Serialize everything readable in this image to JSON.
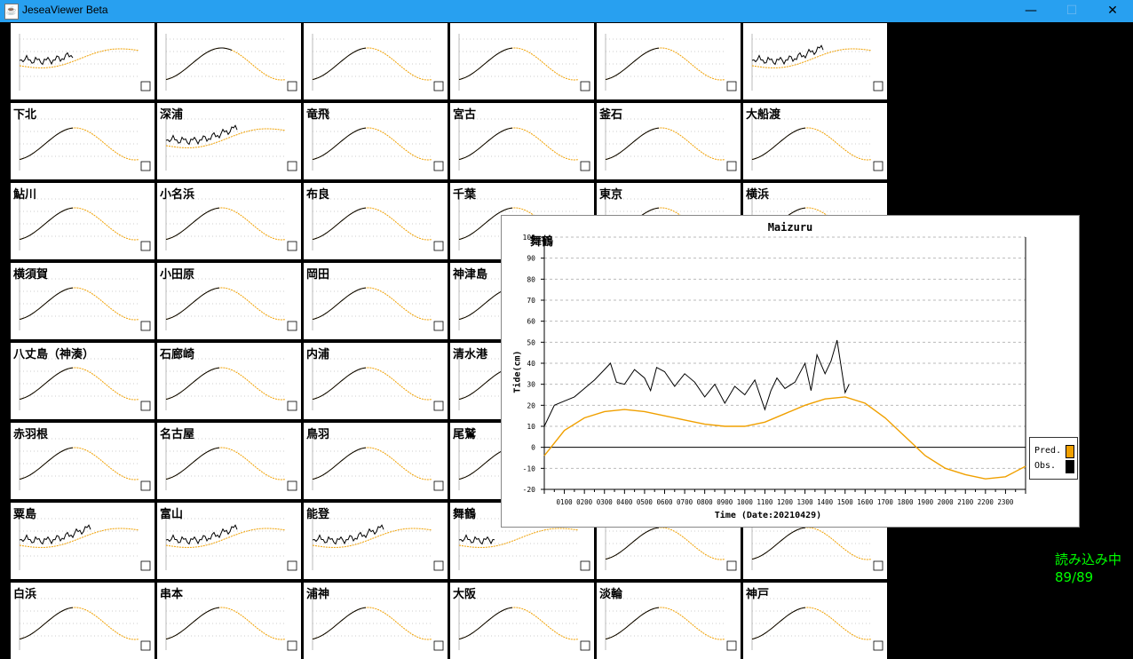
{
  "window": {
    "title": "JeseaViewer Beta",
    "minimize_glyph": "—",
    "maximize_glyph": "☐",
    "close_glyph": "✕"
  },
  "colors": {
    "titlebar": "#28a0f0",
    "predicted": "#f0a000",
    "observed": "#000000",
    "status_text": "#00ff00"
  },
  "tiles": [
    {
      "name": "",
      "style": "noisy",
      "obs": 0.45
    },
    {
      "name": "",
      "style": "wave",
      "obs": 0.55
    },
    {
      "name": "",
      "style": "wave",
      "obs": 0.45
    },
    {
      "name": "",
      "style": "wave",
      "obs": 0.45
    },
    {
      "name": "",
      "style": "wave",
      "obs": 0.45
    },
    {
      "name": "",
      "style": "noisy",
      "obs": 0.6
    },
    {
      "name": "下北",
      "style": "wave",
      "obs": 0.45
    },
    {
      "name": "深浦",
      "style": "noisy",
      "obs": 0.6
    },
    {
      "name": "竜飛",
      "style": "wave",
      "obs": 0.45
    },
    {
      "name": "宮古",
      "style": "wave",
      "obs": 0.45
    },
    {
      "name": "釜石",
      "style": "wave",
      "obs": 0.45
    },
    {
      "name": "大船渡",
      "style": "wave",
      "obs": 0.45
    },
    {
      "name": "鮎川",
      "style": "wave",
      "obs": 0.45
    },
    {
      "name": "小名浜",
      "style": "wave",
      "obs": 0.45
    },
    {
      "name": "布良",
      "style": "wave",
      "obs": 0.45
    },
    {
      "name": "千葉",
      "style": "wave",
      "obs": 0.45
    },
    {
      "name": "東京",
      "style": "wave",
      "obs": 0.45
    },
    {
      "name": "横浜",
      "style": "wave",
      "obs": 0.45
    },
    {
      "name": "横須賀",
      "style": "wave",
      "obs": 0.45
    },
    {
      "name": "小田原",
      "style": "wave",
      "obs": 0.45
    },
    {
      "name": "岡田",
      "style": "wave",
      "obs": 0.45
    },
    {
      "name": "神津島",
      "style": "wave",
      "obs": 0.45
    },
    {
      "name": "",
      "style": "wave",
      "obs": 0.45
    },
    {
      "name": "",
      "style": "wave",
      "obs": 0.45
    },
    {
      "name": "八丈島（神湊）",
      "style": "wave",
      "obs": 0.45
    },
    {
      "name": "石廊崎",
      "style": "wave",
      "obs": 0.45
    },
    {
      "name": "内浦",
      "style": "wave",
      "obs": 0.45
    },
    {
      "name": "清水港",
      "style": "wave",
      "obs": 0.45
    },
    {
      "name": "",
      "style": "wave",
      "obs": 0.45
    },
    {
      "name": "",
      "style": "wave",
      "obs": 0.45
    },
    {
      "name": "赤羽根",
      "style": "wave",
      "obs": 0.45
    },
    {
      "name": "名古屋",
      "style": "wave",
      "obs": 0.45
    },
    {
      "name": "鳥羽",
      "style": "wave",
      "obs": 0.45
    },
    {
      "name": "尾鷲",
      "style": "wave",
      "obs": 0.45
    },
    {
      "name": "",
      "style": "wave",
      "obs": 0.45
    },
    {
      "name": "",
      "style": "wave",
      "obs": 0.45
    },
    {
      "name": "粟島",
      "style": "noisy",
      "obs": 0.6
    },
    {
      "name": "富山",
      "style": "noisy",
      "obs": 0.6
    },
    {
      "name": "能登",
      "style": "noisy",
      "obs": 0.6
    },
    {
      "name": "舞鶴",
      "style": "noisy",
      "obs": 0.3
    },
    {
      "name": "",
      "style": "wave",
      "obs": 0.45
    },
    {
      "name": "",
      "style": "wave",
      "obs": 0.45
    },
    {
      "name": "白浜",
      "style": "wave",
      "obs": 0.45
    },
    {
      "name": "串本",
      "style": "wave",
      "obs": 0.45
    },
    {
      "name": "浦神",
      "style": "wave",
      "obs": 0.45
    },
    {
      "name": "大阪",
      "style": "wave",
      "obs": 0.45
    },
    {
      "name": "淡輪",
      "style": "wave",
      "obs": 0.45
    },
    {
      "name": "神戸",
      "style": "wave",
      "obs": 0.45
    }
  ],
  "popup": {
    "title": "Maizuru",
    "station_jp": "舞鶴",
    "y_label": "Tide(cm)",
    "x_label": "Time (Date:20210429)",
    "legend": {
      "pred": "Pred.",
      "obs": "Obs."
    }
  },
  "chart_data": {
    "type": "line",
    "title": "Maizuru",
    "ylabel": "Tide(cm)",
    "xlabel": "Time (Date:20210429)",
    "ylim": [
      -20,
      100
    ],
    "yticks": [
      -20,
      -10,
      0,
      10,
      20,
      30,
      40,
      50,
      60,
      70,
      80,
      90,
      100
    ],
    "xlim": [
      0,
      24
    ],
    "xtick_labels": [
      "0100",
      "0200",
      "0300",
      "0400",
      "0500",
      "0600",
      "0700",
      "0800",
      "0900",
      "1000",
      "1100",
      "1200",
      "1300",
      "1400",
      "1500",
      "1600",
      "1700",
      "1800",
      "1900",
      "2000",
      "2100",
      "2200",
      "2300"
    ],
    "grid": true,
    "legend_position": "right",
    "series": [
      {
        "name": "Pred.",
        "color": "#f0a000",
        "x": [
          0,
          1,
          2,
          3,
          4,
          5,
          6,
          7,
          8,
          9,
          10,
          11,
          12,
          13,
          14,
          15,
          16,
          17,
          18,
          19,
          20,
          21,
          22,
          23,
          24
        ],
        "y": [
          -4,
          8,
          14,
          17,
          18,
          17,
          15,
          13,
          11,
          10,
          10,
          12,
          16,
          20,
          23,
          24,
          21,
          14,
          5,
          -4,
          -10,
          -13,
          -15,
          -14,
          -9
        ]
      },
      {
        "name": "Obs.",
        "color": "#000000",
        "x": [
          0,
          0.5,
          1,
          1.5,
          2,
          2.5,
          3,
          3.3,
          3.6,
          4,
          4.5,
          5,
          5.3,
          5.6,
          6,
          6.5,
          7,
          7.5,
          8,
          8.5,
          9,
          9.5,
          10,
          10.5,
          11,
          11.3,
          11.6,
          12,
          12.5,
          13,
          13.3,
          13.6,
          14,
          14.3,
          14.6,
          15,
          15.2
        ],
        "y": [
          10,
          20,
          22,
          24,
          28,
          32,
          37,
          40,
          31,
          30,
          37,
          33,
          27,
          38,
          36,
          29,
          35,
          31,
          24,
          30,
          21,
          29,
          25,
          32,
          18,
          27,
          33,
          28,
          31,
          40,
          27,
          44,
          35,
          41,
          51,
          26,
          30
        ]
      }
    ]
  },
  "status": {
    "line1": "読み込み中",
    "line2": "89/89"
  }
}
